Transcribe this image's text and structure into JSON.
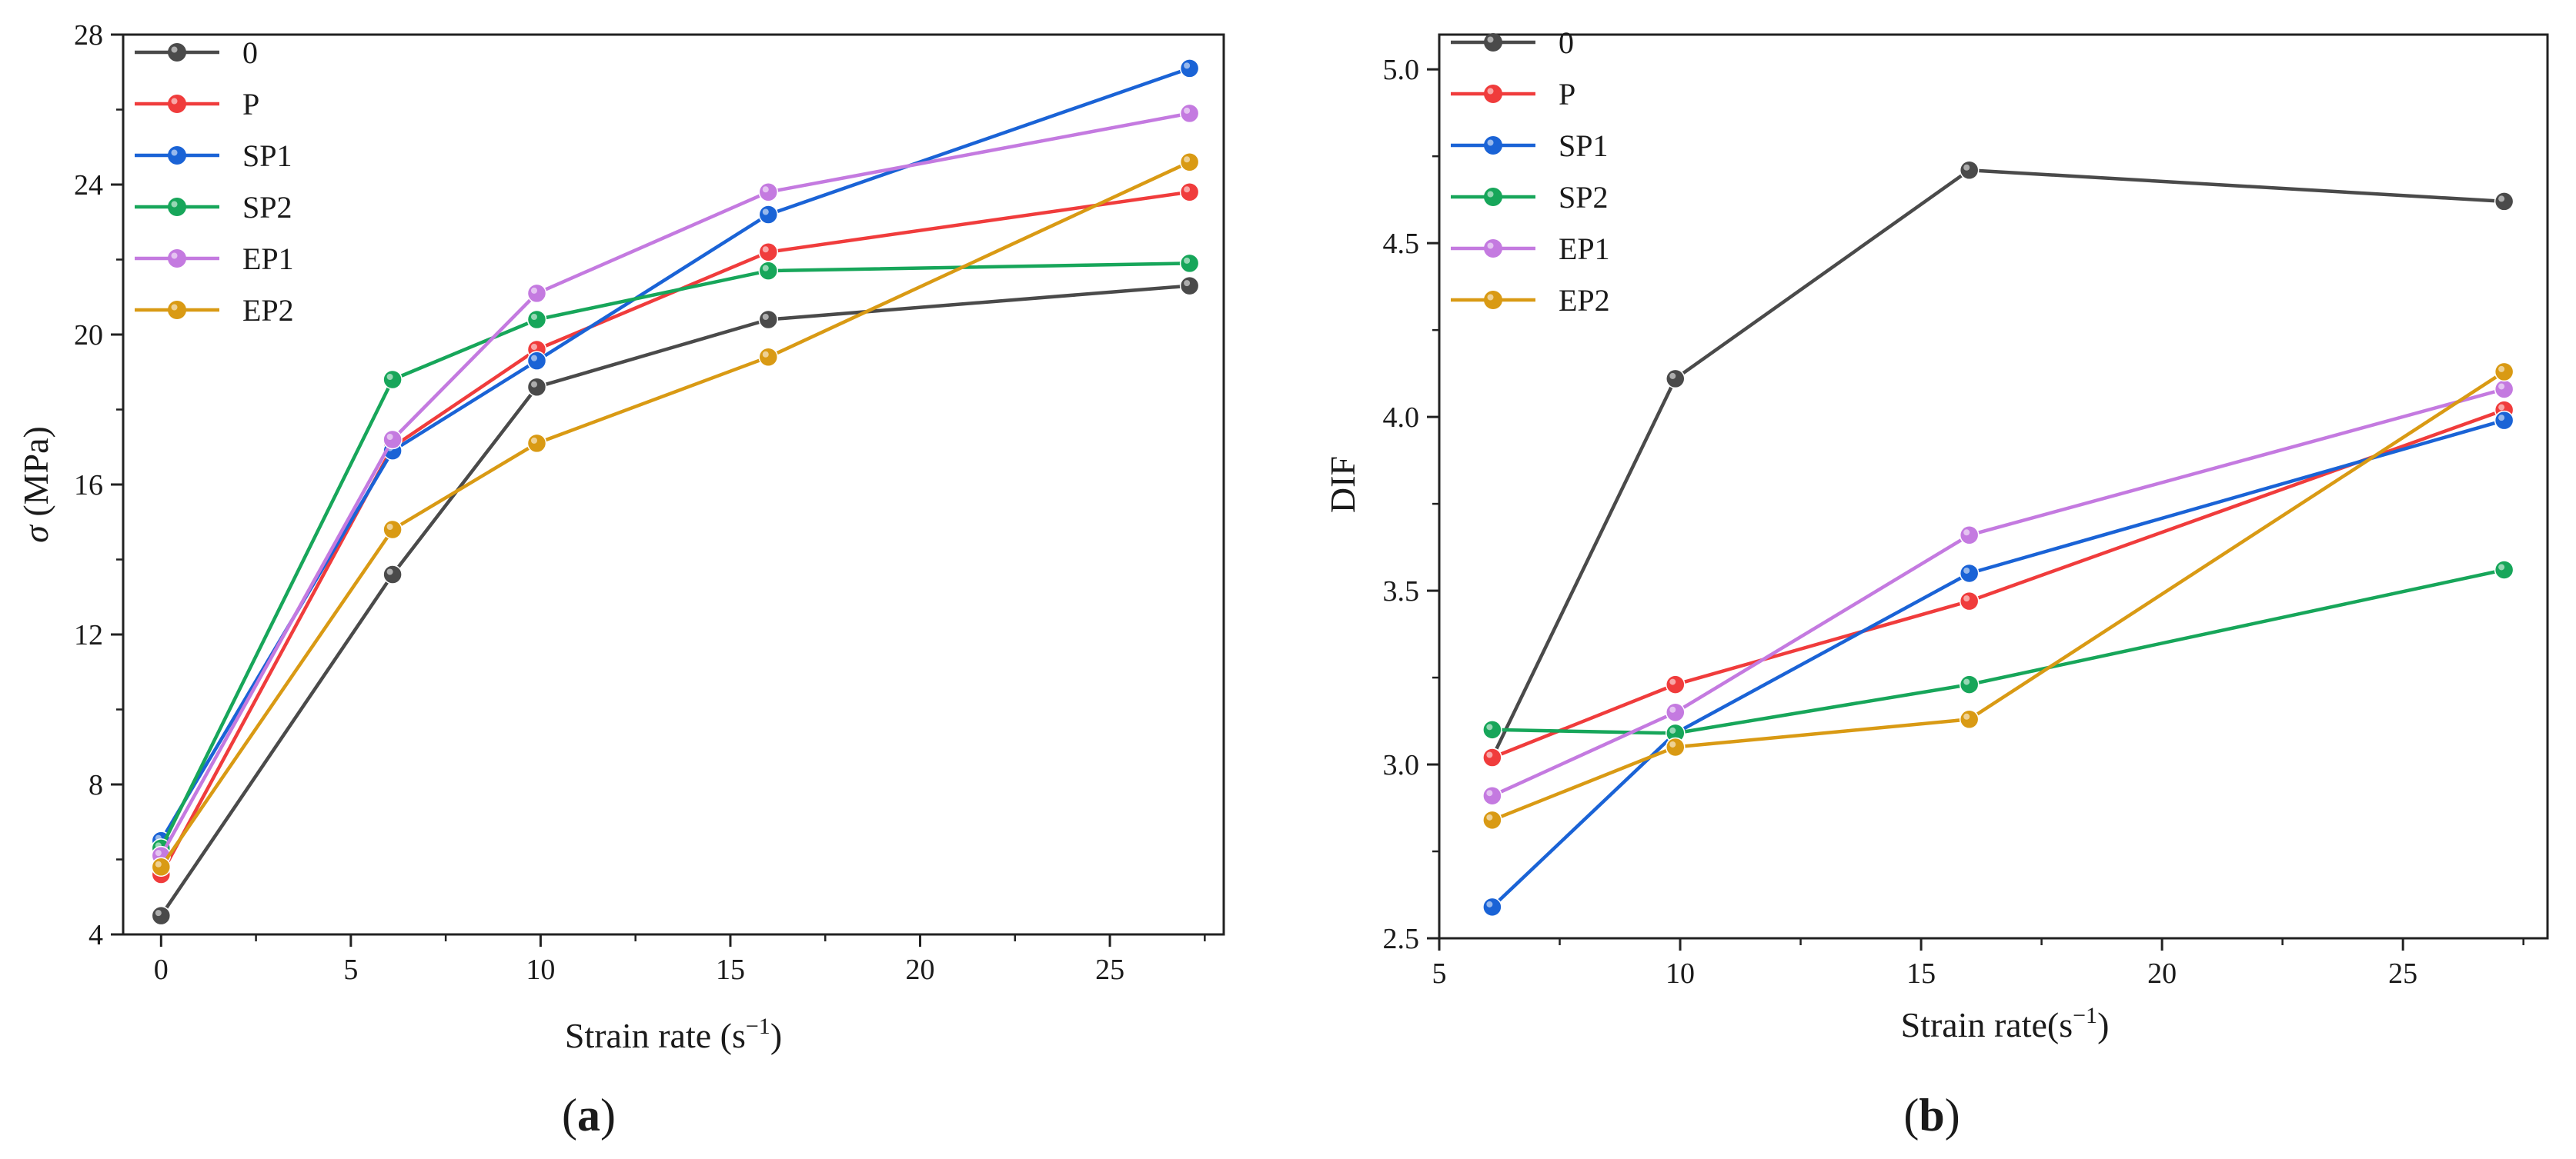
{
  "chart_data": [
    {
      "type": "line",
      "panel_label_open": "(",
      "panel_label_letter": "a",
      "panel_label_close": ")",
      "xlabel": "Strain rate (s",
      "xlabel_exp": "−1",
      "xlabel_suffix": ")",
      "ylabel_sym": "σ",
      "ylabel_unit": " (MPa)",
      "xlim": [
        -1,
        28
      ],
      "ylim": [
        4,
        28
      ],
      "xticks": [
        0,
        5,
        10,
        15,
        20,
        25
      ],
      "yticks": [
        4,
        8,
        12,
        16,
        20,
        24,
        28
      ],
      "grid": false,
      "legend_position": "top-left",
      "series": [
        {
          "name": "0",
          "color": "#4a4a4a",
          "x": [
            0,
            6.1,
            9.9,
            16,
            27.1
          ],
          "values": [
            4.5,
            13.6,
            18.6,
            20.4,
            21.3
          ]
        },
        {
          "name": "P",
          "color": "#f03c3c",
          "x": [
            0,
            6.1,
            9.9,
            16,
            27.1
          ],
          "values": [
            5.6,
            17.0,
            19.6,
            22.2,
            23.8
          ]
        },
        {
          "name": "SP1",
          "color": "#1a63d6",
          "x": [
            0,
            6.1,
            9.9,
            16,
            27.1
          ],
          "values": [
            6.5,
            16.9,
            19.3,
            23.2,
            27.1
          ]
        },
        {
          "name": "SP2",
          "color": "#17a65a",
          "x": [
            0,
            6.1,
            9.9,
            16,
            27.1
          ],
          "values": [
            6.3,
            18.8,
            20.4,
            21.7,
            21.9
          ]
        },
        {
          "name": "EP1",
          "color": "#c47ae0",
          "x": [
            0,
            6.1,
            9.9,
            16,
            27.1
          ],
          "values": [
            6.1,
            17.2,
            21.1,
            23.8,
            25.9
          ]
        },
        {
          "name": "EP2",
          "color": "#d99a14",
          "x": [
            0,
            6.1,
            9.9,
            16,
            27.1
          ],
          "values": [
            5.8,
            14.8,
            17.1,
            19.4,
            24.6
          ]
        }
      ]
    },
    {
      "type": "line",
      "panel_label_open": "(",
      "panel_label_letter": "b",
      "panel_label_close": ")",
      "xlabel": "Strain rate(s",
      "xlabel_exp": "−1",
      "xlabel_suffix": ")",
      "ylabel": "DIF",
      "xlim": [
        5,
        28
      ],
      "ylim": [
        2.5,
        5.1
      ],
      "xticks": [
        5,
        10,
        15,
        20,
        25
      ],
      "yticks": [
        2.5,
        3.0,
        3.5,
        4.0,
        4.5,
        5.0
      ],
      "ytick_labels": [
        "2.5",
        "3.0",
        "3.5",
        "4.0",
        "4.5",
        "5.0"
      ],
      "grid": false,
      "legend_position": "top-left",
      "series": [
        {
          "name": "0",
          "color": "#4a4a4a",
          "x": [
            6.1,
            9.9,
            16,
            27.1
          ],
          "values": [
            3.02,
            4.11,
            4.71,
            4.62
          ]
        },
        {
          "name": "P",
          "color": "#f03c3c",
          "x": [
            6.1,
            9.9,
            16,
            27.1
          ],
          "values": [
            3.02,
            3.23,
            3.47,
            4.02
          ]
        },
        {
          "name": "SP1",
          "color": "#1a63d6",
          "x": [
            6.1,
            9.9,
            16,
            27.1
          ],
          "values": [
            2.59,
            3.09,
            3.55,
            3.99
          ]
        },
        {
          "name": "SP2",
          "color": "#17a65a",
          "x": [
            6.1,
            9.9,
            16,
            27.1
          ],
          "values": [
            3.1,
            3.09,
            3.23,
            3.56
          ]
        },
        {
          "name": "EP1",
          "color": "#c47ae0",
          "x": [
            6.1,
            9.9,
            16,
            27.1
          ],
          "values": [
            2.91,
            3.15,
            3.66,
            4.08
          ]
        },
        {
          "name": "EP2",
          "color": "#d99a14",
          "x": [
            6.1,
            9.9,
            16,
            27.1
          ],
          "values": [
            2.84,
            3.05,
            3.13,
            4.13
          ]
        }
      ]
    }
  ]
}
